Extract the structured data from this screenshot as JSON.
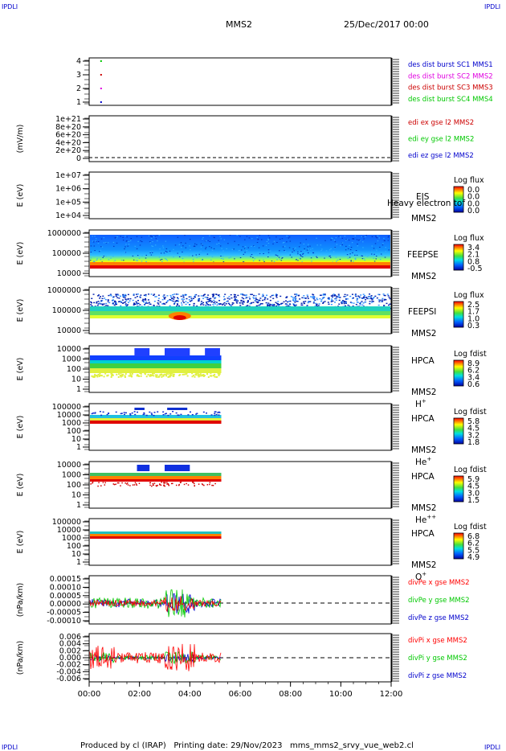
{
  "corner_left": "IPDLI",
  "corner_right": "IPDLI",
  "corner_bottom_left": "IPDLI",
  "corner_bottom_right": "IPDLI",
  "header": {
    "spacecraft": "MMS2",
    "date": "25/Dec/2017 00:00"
  },
  "footer": "Produced by cl (IRAP)   Printing date: 29/Nov/2023   mms_mms2_srvy_vue_web2.cl",
  "colors": {
    "red": "#ff0000",
    "green": "#00c800",
    "blue": "#0000cc",
    "magenta": "#e000e0",
    "dred": "#cc0000"
  },
  "chart_data": [
    {
      "type": "scatter",
      "id": "dist",
      "yticks": [
        "4",
        "3",
        "2",
        "1"
      ],
      "ylim": [
        0.5,
        4.5
      ],
      "legend": [
        {
          "text": "des dist burst SC1 MMS1",
          "color": "#0000cc"
        },
        {
          "text": "des dist burst SC2 MMS2",
          "color": "#e000e0"
        },
        {
          "text": "des dist burst SC3 MMS3",
          "color": "#cc0000"
        },
        {
          "text": "des dist burst SC4 MMS4",
          "color": "#00c800"
        }
      ],
      "points": [
        {
          "x": 0.25,
          "y": 4
        },
        {
          "x": 0.25,
          "y": 3
        },
        {
          "x": 0.25,
          "y": 2
        },
        {
          "x": 0.25,
          "y": 1
        }
      ]
    },
    {
      "type": "line",
      "id": "edi",
      "ylabel": "(mV/m)",
      "yticks": [
        "1e+21",
        "8e+20",
        "6e+20",
        "4e+20",
        "2e+20",
        "0"
      ],
      "ylim": [
        0,
        1e+21
      ],
      "legend": [
        {
          "text": "edi ex gse l2 MMS2",
          "color": "#cc0000"
        },
        {
          "text": "edi ey gse l2 MMS2",
          "color": "#00c800"
        },
        {
          "text": "edi ez gse l2 MMS2",
          "color": "#0000cc"
        }
      ]
    },
    {
      "type": "heatmap",
      "id": "eis",
      "ylabel": "E (eV)",
      "yticks": [
        "1e+07",
        "1e+06",
        "1e+05",
        "1e+04"
      ],
      "ylim": [
        10000,
        10000000
      ],
      "labels": [
        "EIS",
        "MMS2"
      ],
      "overlay": "Heavy electron tof",
      "cbar_title": "Log flux",
      "cbar_ticks": [
        "0.0",
        "0.0",
        "0.0",
        "0.0"
      ]
    },
    {
      "type": "heatmap",
      "id": "feepse",
      "ylabel": "E (eV)",
      "yticks": [
        "1000000",
        "100000",
        "10000"
      ],
      "ylim": [
        10000,
        1000000
      ],
      "labels": [
        "FEEPSE",
        "MMS2"
      ],
      "cbar_title": "Log flux",
      "cbar_ticks": [
        "3.4",
        "2.1",
        "0.8",
        "-0.5"
      ]
    },
    {
      "type": "heatmap",
      "id": "feepsi",
      "ylabel": "E (eV)",
      "yticks": [
        "1000000",
        "100000",
        "10000"
      ],
      "ylim": [
        10000,
        1000000
      ],
      "labels": [
        "FEEPSI",
        "MMS2"
      ],
      "cbar_title": "Log flux",
      "cbar_ticks": [
        "2.5",
        "1.7",
        "1.0",
        "0.3"
      ]
    },
    {
      "type": "heatmap",
      "id": "hpca_h",
      "ylabel": "E (eV)",
      "yticks": [
        "10000",
        "1000",
        "100",
        "10",
        "1"
      ],
      "ylim": [
        1,
        30000
      ],
      "labels": [
        "HPCA",
        "MMS2"
      ],
      "species": "H",
      "species_sup": "+",
      "cbar_title": "Log fdist",
      "cbar_ticks": [
        "8.9",
        "6.2",
        "3.4",
        "0.6"
      ],
      "data_end_hour": 5.25
    },
    {
      "type": "heatmap",
      "id": "hpca_he",
      "ylabel": "E (eV)",
      "yticks": [
        "100000",
        "10000",
        "1000",
        "100",
        "10",
        "1"
      ],
      "ylim": [
        1,
        100000
      ],
      "labels": [
        "HPCA",
        "MMS2"
      ],
      "species": "He",
      "species_sup": "+",
      "cbar_title": "Log fdist",
      "cbar_ticks": [
        "5.8",
        "4.5",
        "3.2",
        "1.8"
      ],
      "data_end_hour": 5.25
    },
    {
      "type": "heatmap",
      "id": "hpca_hepp",
      "ylabel": "E (eV)",
      "yticks": [
        "10000",
        "1000",
        "100",
        "10",
        "1"
      ],
      "ylim": [
        1,
        10000
      ],
      "labels": [
        "HPCA",
        "MMS2"
      ],
      "species": "He",
      "species_sup": "++",
      "cbar_title": "Log fdist",
      "cbar_ticks": [
        "5.9",
        "4.5",
        "3.0",
        "1.5"
      ],
      "data_end_hour": 5.25
    },
    {
      "type": "heatmap",
      "id": "hpca_o",
      "ylabel": "E (eV)",
      "yticks": [
        "100000",
        "10000",
        "1000",
        "100",
        "10",
        "1"
      ],
      "ylim": [
        1,
        100000
      ],
      "labels": [
        "HPCA",
        "MMS2"
      ],
      "species": "O",
      "species_sup": "+",
      "cbar_title": "Log fdist",
      "cbar_ticks": [
        "6.8",
        "6.2",
        "5.5",
        "4.9"
      ],
      "data_end_hour": 5.25
    },
    {
      "type": "line",
      "id": "divpe",
      "ylabel": "(nPa/km)",
      "yticks": [
        "0.00015",
        "0.00010",
        "0.00005",
        "0.00000",
        "-0.00005",
        "-0.00010"
      ],
      "ylim": [
        -0.00011,
        0.00015
      ],
      "legend": [
        {
          "text": "divPe x gse MMS2",
          "color": "#ff0000"
        },
        {
          "text": "divPe y gse MMS2",
          "color": "#00c800"
        },
        {
          "text": "divPe z gse MMS2",
          "color": "#0000cc"
        }
      ],
      "data_end_hour": 5.25
    },
    {
      "type": "line",
      "id": "divpi",
      "ylabel": "(nPa/km)",
      "yticks": [
        "0.006",
        "0.004",
        "0.002",
        "0.000",
        "-0.002",
        "-0.004",
        "-0.006"
      ],
      "ylim": [
        -0.006,
        0.006
      ],
      "legend": [
        {
          "text": "divPi x gse MMS2",
          "color": "#ff0000"
        },
        {
          "text": "divPi y gse MMS2",
          "color": "#00c800"
        },
        {
          "text": "divPi z gse MMS2",
          "color": "#0000cc"
        }
      ],
      "data_end_hour": 5.25
    }
  ],
  "xaxis": {
    "ticks": [
      "00:00",
      "02:00",
      "04:00",
      "06:00",
      "08:00",
      "10:00",
      "12:00"
    ],
    "xlim": [
      0,
      12
    ]
  }
}
